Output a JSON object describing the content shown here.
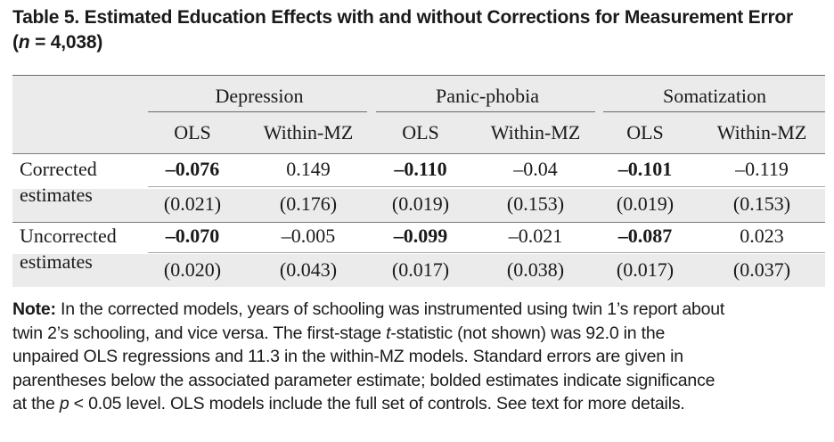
{
  "title": {
    "line1": "Table 5.  Estimated Education Effects with and without Corrections for Measurement Error",
    "line2_open": "(",
    "line2_n": "n",
    "line2_rest": " = 4,038)"
  },
  "table": {
    "groups": [
      "Depression",
      "Panic-phobia",
      "Somatization"
    ],
    "subheaders": [
      "OLS",
      "Within-MZ",
      "OLS",
      "Within-MZ",
      "OLS",
      "Within-MZ"
    ],
    "rows": [
      {
        "label_line1": "Corrected",
        "label_line2": "estimates",
        "estimates": [
          "–0.076",
          "0.149",
          "–0.110",
          "–0.04",
          "–0.101",
          "–0.119"
        ],
        "bold": [
          true,
          false,
          true,
          false,
          true,
          false
        ],
        "errors": [
          "(0.021)",
          "(0.176)",
          "(0.019)",
          "(0.153)",
          "(0.019)",
          "(0.153)"
        ]
      },
      {
        "label_line1": "Uncorrected",
        "label_line2": "estimates",
        "estimates": [
          "–0.070",
          "–0.005",
          "–0.099",
          "–0.021",
          "–0.087",
          "0.023"
        ],
        "bold": [
          true,
          false,
          true,
          false,
          true,
          false
        ],
        "errors": [
          "(0.020)",
          "(0.043)",
          "(0.017)",
          "(0.038)",
          "(0.017)",
          "(0.037)"
        ]
      }
    ]
  },
  "note": {
    "label": "Note:",
    "l1": " In the corrected models, years of schooling was instrumented using twin 1’s report about",
    "l2a": "twin 2’s schooling, and vice versa. The first-stage ",
    "l2t": "t",
    "l2b": "-statistic (not shown) was 92.0 in the",
    "l3": "unpaired OLS regressions and 11.3 in the within-MZ models. Standard errors are given in",
    "l4": "parentheses below the associated parameter estimate; bolded estimates indicate significance",
    "l5a": "at the ",
    "l5p": "p",
    "l5b": " < 0.05 level. OLS models include the full set of controls. See text for more details."
  }
}
